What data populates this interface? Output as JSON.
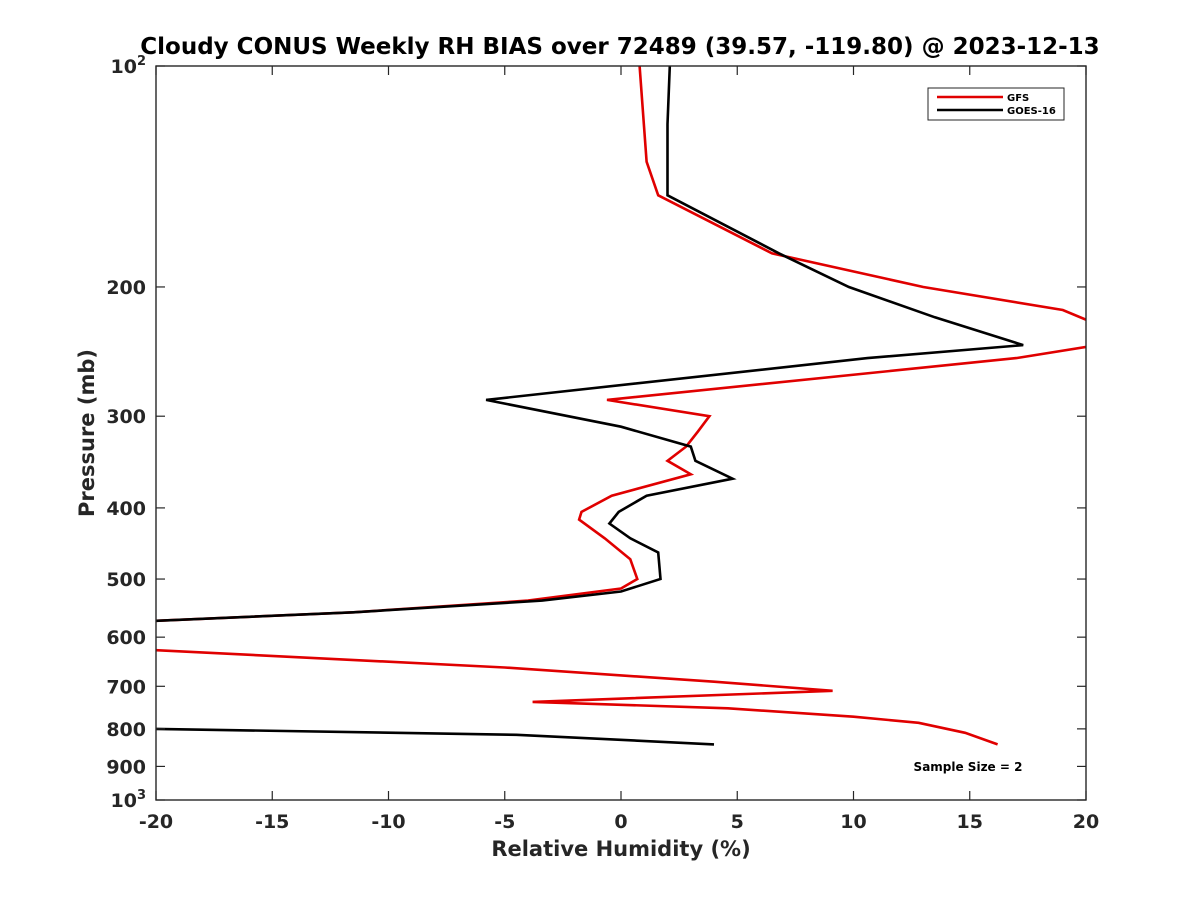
{
  "chart_data": {
    "type": "line",
    "title": "Cloudy CONUS Weekly RH BIAS over 72489 (39.57, -119.80) @ 2023-12-13",
    "xlabel": "Relative Humidity (%)",
    "ylabel": "Pressure (mb)",
    "xlim": [
      -20,
      20
    ],
    "ylim": [
      100,
      1000
    ],
    "y_scale": "log",
    "y_reversed": true,
    "x_ticks": [
      "-20",
      "-15",
      "-10",
      "-5",
      "0",
      "5",
      "10",
      "15",
      "20"
    ],
    "y_ticks": [
      {
        "value": 100,
        "base": "10",
        "exp": "2"
      },
      {
        "value": 200,
        "label": "200"
      },
      {
        "value": 300,
        "label": "300"
      },
      {
        "value": 400,
        "label": "400"
      },
      {
        "value": 500,
        "label": "500"
      },
      {
        "value": 600,
        "label": "600"
      },
      {
        "value": 700,
        "label": "700"
      },
      {
        "value": 800,
        "label": "800"
      },
      {
        "value": 900,
        "label": "900"
      },
      {
        "value": 1000,
        "base": "10",
        "exp": "3"
      }
    ],
    "grid": false,
    "legend_position": "top-right",
    "series": [
      {
        "name": "GFS",
        "color": "#e00000",
        "segments": [
          [
            [
              0.8,
              100
            ],
            [
              1.1,
              135
            ],
            [
              1.6,
              150
            ],
            [
              6.5,
              180
            ],
            [
              13,
              200
            ],
            [
              19,
              215
            ],
            [
              20.5,
              225
            ],
            [
              20.5,
              240
            ],
            [
              17,
              250
            ],
            [
              -0.6,
              285
            ],
            [
              3.8,
              300
            ],
            [
              3.3,
              315
            ],
            [
              2.8,
              330
            ],
            [
              2.0,
              345
            ],
            [
              3.0,
              360
            ],
            [
              -0.4,
              385
            ],
            [
              -1.7,
              405
            ],
            [
              -1.8,
              415
            ],
            [
              -0.7,
              440
            ],
            [
              0.4,
              470
            ],
            [
              0.7,
              500
            ],
            [
              0,
              515
            ],
            [
              -4,
              535
            ],
            [
              -11.5,
              555
            ],
            [
              -20,
              570
            ]
          ],
          [
            [
              -20,
              625
            ],
            [
              -5,
              660
            ],
            [
              4,
              690
            ],
            [
              9.1,
              710
            ],
            [
              -3.8,
              735
            ],
            [
              4.6,
              750
            ],
            [
              10,
              770
            ],
            [
              12.8,
              785
            ],
            [
              14.8,
              810
            ],
            [
              16.2,
              840
            ]
          ]
        ]
      },
      {
        "name": "GOES-16",
        "color": "#000000",
        "segments": [
          [
            [
              2.1,
              100
            ],
            [
              2.0,
              120
            ],
            [
              2.0,
              150
            ],
            [
              6.8,
              180
            ],
            [
              9.8,
              200
            ],
            [
              13.5,
              220
            ],
            [
              17.3,
              240
            ],
            [
              10.6,
              250
            ],
            [
              -5.8,
              285
            ],
            [
              0,
              310
            ],
            [
              3.0,
              330
            ],
            [
              3.2,
              345
            ],
            [
              4.8,
              365
            ],
            [
              1.1,
              385
            ],
            [
              -0.1,
              405
            ],
            [
              -0.5,
              420
            ],
            [
              0.4,
              440
            ],
            [
              1.6,
              460
            ],
            [
              1.7,
              500
            ],
            [
              0,
              520
            ],
            [
              -3.4,
              535
            ],
            [
              -11.5,
              555
            ],
            [
              -20,
              570
            ]
          ],
          [
            [
              -20,
              800
            ],
            [
              -4.5,
              815
            ],
            [
              4.0,
              840
            ]
          ]
        ]
      }
    ],
    "annotations": [
      "Sample Size = 2"
    ]
  }
}
